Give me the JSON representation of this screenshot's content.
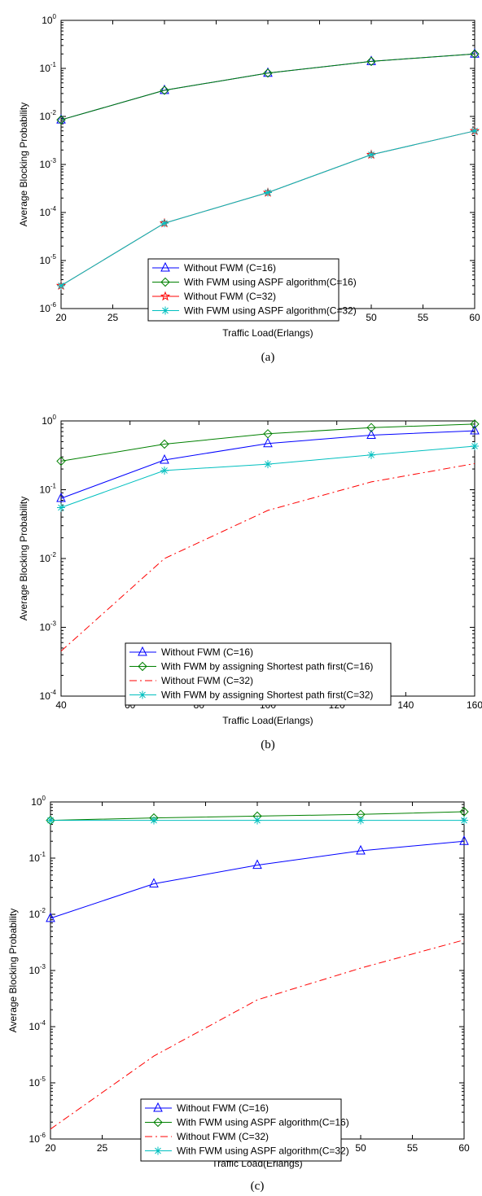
{
  "chart_data": [
    {
      "type": "line",
      "panel": "a",
      "caption": "(a)",
      "xlabel": "Traffic Load(Erlangs)",
      "ylabel": "Average Blocking Probability",
      "yscale": "log",
      "xlim": [
        20,
        60
      ],
      "ylim": [
        1e-06,
        1
      ],
      "xticks": [
        20,
        25,
        30,
        35,
        40,
        45,
        50,
        55,
        60
      ],
      "yticks": [
        -6,
        -5,
        -4,
        -3,
        -2,
        -1,
        0
      ],
      "grid": false,
      "legend_position": "lower-right",
      "series": [
        {
          "name": "Without FWM (C=16)",
          "color": "#0000ff",
          "style": "solid",
          "marker": "triangle",
          "x": [
            20,
            30,
            40,
            50,
            60
          ],
          "y": [
            0.0085,
            0.035,
            0.08,
            0.14,
            0.2
          ]
        },
        {
          "name": "With FWM using ASPF algorithm(C=16)",
          "color": "#008000",
          "style": "solid",
          "marker": "diamond",
          "x": [
            20,
            30,
            40,
            50,
            60
          ],
          "y": [
            0.0085,
            0.035,
            0.08,
            0.14,
            0.2
          ]
        },
        {
          "name": "Without FWM (C=32)",
          "color": "#ff0000",
          "style": "solid",
          "marker": "pentagram",
          "x": [
            20,
            30,
            40,
            50,
            60
          ],
          "y": [
            3e-06,
            6e-05,
            0.00026,
            0.0016,
            0.005
          ]
        },
        {
          "name": "With FWM using ASPF algorithm(C=32)",
          "color": "#00bfbf",
          "style": "solid",
          "marker": "asterisk",
          "x": [
            20,
            30,
            40,
            50,
            60
          ],
          "y": [
            3e-06,
            6e-05,
            0.00026,
            0.0016,
            0.005
          ]
        }
      ]
    },
    {
      "type": "line",
      "panel": "b",
      "caption": "(b)",
      "xlabel": "Traffic Load(Erlangs)",
      "ylabel": "Average Blocking Probability",
      "yscale": "log",
      "xlim": [
        40,
        160
      ],
      "ylim": [
        0.0001,
        1
      ],
      "xticks": [
        40,
        60,
        80,
        100,
        120,
        140,
        160
      ],
      "yticks": [
        -4,
        -3,
        -2,
        -1,
        0
      ],
      "grid": false,
      "legend_position": "lower-right",
      "series": [
        {
          "name": "Without FWM (C=16)",
          "color": "#0000ff",
          "style": "solid",
          "marker": "triangle",
          "x": [
            40,
            70,
            100,
            130,
            160
          ],
          "y": [
            0.075,
            0.27,
            0.47,
            0.62,
            0.72
          ]
        },
        {
          "name": "With FWM by assigning Shortest path first(C=16)",
          "color": "#008000",
          "style": "solid",
          "marker": "diamond",
          "x": [
            40,
            70,
            100,
            130,
            160
          ],
          "y": [
            0.26,
            0.46,
            0.65,
            0.8,
            0.9
          ]
        },
        {
          "name": "Without FWM (C=32)",
          "color": "#ff0000",
          "style": "dashdot",
          "marker": "none",
          "x": [
            40,
            70,
            100,
            130,
            160
          ],
          "y": [
            0.00045,
            0.01,
            0.05,
            0.13,
            0.24
          ]
        },
        {
          "name": "With FWM by assigning Shortest path first(C=32)",
          "color": "#00bfbf",
          "style": "solid",
          "marker": "asterisk",
          "x": [
            40,
            70,
            100,
            130,
            160
          ],
          "y": [
            0.055,
            0.19,
            0.235,
            0.32,
            0.43
          ]
        }
      ]
    },
    {
      "type": "line",
      "panel": "c",
      "caption": "(c)",
      "xlabel": "Traffic Load(Erlangs)",
      "ylabel": "Average Blocking Probability",
      "yscale": "log",
      "xlim": [
        20,
        60
      ],
      "ylim": [
        1e-06,
        1
      ],
      "xticks": [
        20,
        25,
        30,
        35,
        40,
        45,
        50,
        55,
        60
      ],
      "yticks": [
        -6,
        -5,
        -4,
        -3,
        -2,
        -1,
        0
      ],
      "grid": false,
      "legend_position": "lower-center",
      "series": [
        {
          "name": "Without FWM (C=16)",
          "color": "#0000ff",
          "style": "solid",
          "marker": "triangle",
          "x": [
            20,
            30,
            40,
            50,
            60
          ],
          "y": [
            0.0085,
            0.035,
            0.075,
            0.135,
            0.2
          ]
        },
        {
          "name": "With FWM using ASPF algorithm(C=16)",
          "color": "#008000",
          "style": "solid",
          "marker": "diamond",
          "x": [
            20,
            30,
            40,
            50,
            60
          ],
          "y": [
            0.47,
            0.52,
            0.56,
            0.6,
            0.67
          ]
        },
        {
          "name": "Without FWM (C=32)",
          "color": "#ff0000",
          "style": "dashdot",
          "marker": "none",
          "x": [
            20,
            30,
            40,
            50,
            60
          ],
          "y": [
            1.5e-06,
            3e-05,
            0.0003,
            0.0011,
            0.0035
          ]
        },
        {
          "name": "With FWM using ASPF algorithm(C=32)",
          "color": "#00bfbf",
          "style": "solid",
          "marker": "asterisk",
          "x": [
            20,
            30,
            40,
            50,
            60
          ],
          "y": [
            0.47,
            0.47,
            0.47,
            0.47,
            0.47
          ]
        }
      ]
    }
  ]
}
